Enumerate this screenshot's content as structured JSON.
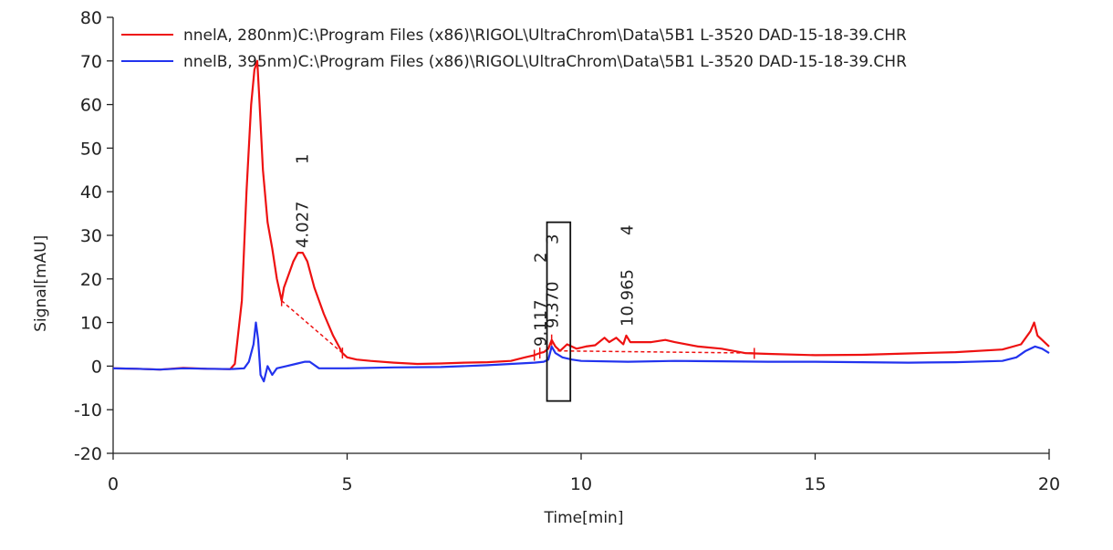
{
  "chart_data": {
    "type": "line",
    "xlabel": "Time[min]",
    "ylabel": "Signal[mAU]",
    "xlim": [
      0,
      20
    ],
    "ylim": [
      -20,
      80
    ],
    "x_ticks": [
      0,
      5,
      10,
      15,
      20
    ],
    "y_ticks": [
      -20,
      -10,
      0,
      10,
      20,
      30,
      40,
      50,
      60,
      70,
      80
    ],
    "grid": false,
    "legend_position": "top-left",
    "series": [
      {
        "name": "nnelA, 280nm)C:\\Program Files (x86)\\RIGOL\\UltraChrom\\Data\\5B1 L-3520 DAD-15-18-39.CHR",
        "color": "#ee1111",
        "x": [
          0,
          0.5,
          1.0,
          1.5,
          2.0,
          2.5,
          2.6,
          2.75,
          2.85,
          2.95,
          3.02,
          3.08,
          3.12,
          3.2,
          3.3,
          3.4,
          3.5,
          3.6,
          3.65,
          3.75,
          3.85,
          3.95,
          4.05,
          4.15,
          4.3,
          4.5,
          4.7,
          4.9,
          5.0,
          5.2,
          5.5,
          6.0,
          6.5,
          7.0,
          7.5,
          8.0,
          8.5,
          8.8,
          9.0,
          9.117,
          9.2,
          9.3,
          9.37,
          9.45,
          9.55,
          9.7,
          9.9,
          10.1,
          10.3,
          10.5,
          10.6,
          10.75,
          10.9,
          10.965,
          11.05,
          11.2,
          11.5,
          11.8,
          12.0,
          12.5,
          13.0,
          13.5,
          14.0,
          15.0,
          16.0,
          17.0,
          18.0,
          19.0,
          19.4,
          19.6,
          19.68,
          19.75,
          19.85,
          20.0
        ],
        "values": [
          -0.5,
          -0.6,
          -0.8,
          -0.4,
          -0.6,
          -0.7,
          0.5,
          15,
          40,
          60,
          68,
          70,
          62,
          45,
          33,
          27,
          20,
          15,
          18,
          21,
          24,
          26,
          26,
          24,
          18,
          12,
          7,
          3,
          2,
          1.5,
          1.2,
          0.8,
          0.5,
          0.6,
          0.8,
          0.9,
          1.2,
          2,
          2.5,
          3,
          3.2,
          4,
          6,
          4.5,
          3.5,
          5,
          4,
          4.5,
          4.8,
          6.5,
          5.5,
          6.5,
          5,
          7,
          5.5,
          5.5,
          5.5,
          6,
          5.5,
          4.5,
          4,
          3,
          2.8,
          2.5,
          2.6,
          2.9,
          3.2,
          3.8,
          5,
          8,
          10,
          7,
          6,
          4.5
        ]
      },
      {
        "name": "nnelB, 395nm)C:\\Program Files (x86)\\RIGOL\\UltraChrom\\Data\\5B1 L-3520 DAD-15-18-39.CHR",
        "color": "#2233ee",
        "x": [
          0,
          0.5,
          1.0,
          1.5,
          2.0,
          2.5,
          2.8,
          2.9,
          3.0,
          3.05,
          3.1,
          3.15,
          3.22,
          3.3,
          3.4,
          3.5,
          3.7,
          3.9,
          4.1,
          4.2,
          4.4,
          4.7,
          5.0,
          6.0,
          7.0,
          8.0,
          8.5,
          9.0,
          9.2,
          9.3,
          9.37,
          9.45,
          9.6,
          9.8,
          10.0,
          11.0,
          12.0,
          13.0,
          14.0,
          15.0,
          16.0,
          17.0,
          18.0,
          19.0,
          19.3,
          19.5,
          19.7,
          19.85,
          20.0
        ],
        "values": [
          -0.5,
          -0.6,
          -0.8,
          -0.5,
          -0.6,
          -0.7,
          -0.5,
          1,
          5,
          10,
          6,
          -2,
          -3.5,
          0,
          -2,
          -0.5,
          0,
          0.5,
          1,
          1,
          -0.5,
          -0.5,
          -0.5,
          -0.3,
          -0.2,
          0.2,
          0.5,
          0.8,
          1,
          1.5,
          4.5,
          3,
          2,
          1.5,
          1.2,
          1,
          1.2,
          1.1,
          1,
          1,
          0.9,
          0.8,
          0.9,
          1.2,
          2,
          3.5,
          4.5,
          4,
          3
        ]
      }
    ],
    "baseline_segments": [
      {
        "x": [
          3.6,
          4.9
        ],
        "y": [
          15,
          3
        ]
      },
      {
        "x": [
          9.5,
          13.7
        ],
        "y": [
          3.5,
          3
        ]
      }
    ],
    "peak_markers": [
      3.6,
      4.9,
      9.0,
      9.117,
      9.37,
      13.7
    ],
    "peaks": [
      {
        "retention_time": "4.027",
        "number": "1",
        "x": 4.027
      },
      {
        "retention_time": "9.117",
        "number": "2",
        "x": 9.117
      },
      {
        "retention_time": "9.370",
        "number": "3",
        "x": 9.37
      },
      {
        "retention_time": "10.965",
        "number": "4",
        "x": 10.965
      }
    ],
    "highlight_box": {
      "x_range": [
        9.27,
        9.77
      ],
      "y_range": [
        -8,
        33
      ]
    }
  }
}
